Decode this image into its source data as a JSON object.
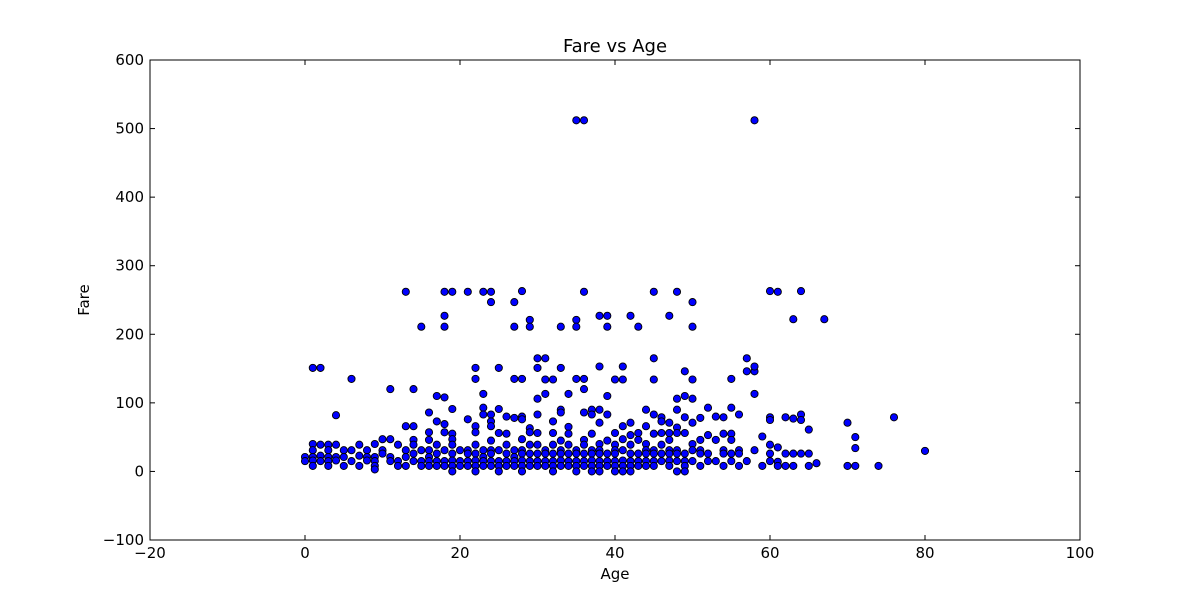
{
  "chart_data": {
    "type": "scatter",
    "title": "Fare vs Age",
    "xlabel": "Age",
    "ylabel": "Fare",
    "xlim": [
      -20,
      100
    ],
    "ylim": [
      -100,
      600
    ],
    "xticks": [
      -20,
      0,
      20,
      40,
      60,
      80,
      100
    ],
    "yticks": [
      -100,
      0,
      100,
      200,
      300,
      400,
      500,
      600
    ],
    "xtick_labels": [
      "−20",
      "0",
      "20",
      "40",
      "60",
      "80",
      "100"
    ],
    "ytick_labels": [
      "−100",
      "0",
      "100",
      "200",
      "300",
      "400",
      "500",
      "600"
    ],
    "grid": false,
    "marker_color": "#0000ff",
    "marker_edge_color": "#000000",
    "points": [
      [
        35,
        512
      ],
      [
        36,
        512
      ],
      [
        58,
        512
      ],
      [
        13,
        262
      ],
      [
        18,
        262
      ],
      [
        19,
        262
      ],
      [
        21,
        262
      ],
      [
        23,
        262
      ],
      [
        24,
        262
      ],
      [
        28,
        263
      ],
      [
        36,
        262
      ],
      [
        45,
        262
      ],
      [
        48,
        262
      ],
      [
        60,
        263
      ],
      [
        61,
        262
      ],
      [
        64,
        263
      ],
      [
        24,
        247
      ],
      [
        27,
        247
      ],
      [
        50,
        247
      ],
      [
        18,
        227
      ],
      [
        29,
        221
      ],
      [
        35,
        221
      ],
      [
        38,
        227
      ],
      [
        39,
        227
      ],
      [
        42,
        227
      ],
      [
        47,
        227
      ],
      [
        63,
        222
      ],
      [
        67,
        222
      ],
      [
        15,
        211
      ],
      [
        18,
        211
      ],
      [
        27,
        211
      ],
      [
        29,
        211
      ],
      [
        33,
        211
      ],
      [
        35,
        211
      ],
      [
        39,
        211
      ],
      [
        43,
        211
      ],
      [
        50,
        211
      ],
      [
        30,
        165
      ],
      [
        31,
        165
      ],
      [
        45,
        165
      ],
      [
        57,
        165
      ],
      [
        1,
        151
      ],
      [
        2,
        151
      ],
      [
        22,
        151
      ],
      [
        25,
        151
      ],
      [
        30,
        151
      ],
      [
        33,
        151
      ],
      [
        38,
        153
      ],
      [
        41,
        153
      ],
      [
        49,
        146
      ],
      [
        57,
        146
      ],
      [
        58,
        146
      ],
      [
        58,
        153
      ],
      [
        6,
        135
      ],
      [
        22,
        135
      ],
      [
        27,
        135
      ],
      [
        28,
        135
      ],
      [
        31,
        134
      ],
      [
        32,
        134
      ],
      [
        35,
        135
      ],
      [
        36,
        135
      ],
      [
        40,
        134
      ],
      [
        41,
        134
      ],
      [
        45,
        134
      ],
      [
        50,
        134
      ],
      [
        55,
        135
      ],
      [
        11,
        120
      ],
      [
        14,
        120
      ],
      [
        36,
        120
      ],
      [
        23,
        113
      ],
      [
        31,
        113
      ],
      [
        34,
        113
      ],
      [
        58,
        113
      ],
      [
        17,
        110
      ],
      [
        18,
        108
      ],
      [
        30,
        106
      ],
      [
        39,
        110
      ],
      [
        48,
        106
      ],
      [
        49,
        110
      ],
      [
        50,
        106
      ],
      [
        19,
        91
      ],
      [
        23,
        93
      ],
      [
        25,
        91
      ],
      [
        33,
        90
      ],
      [
        37,
        90
      ],
      [
        38,
        90
      ],
      [
        44,
        90
      ],
      [
        48,
        90
      ],
      [
        52,
        93
      ],
      [
        55,
        93
      ],
      [
        4,
        82
      ],
      [
        16,
        86
      ],
      [
        23,
        83
      ],
      [
        24,
        83
      ],
      [
        26,
        80
      ],
      [
        27,
        78
      ],
      [
        28,
        80
      ],
      [
        30,
        83
      ],
      [
        33,
        86
      ],
      [
        36,
        86
      ],
      [
        37,
        83
      ],
      [
        39,
        83
      ],
      [
        45,
        83
      ],
      [
        46,
        79
      ],
      [
        49,
        79
      ],
      [
        51,
        78
      ],
      [
        53,
        80
      ],
      [
        54,
        79
      ],
      [
        56,
        83
      ],
      [
        60,
        79
      ],
      [
        62,
        79
      ],
      [
        64,
        83
      ],
      [
        76,
        79
      ],
      [
        17,
        73
      ],
      [
        21,
        76
      ],
      [
        24,
        73
      ],
      [
        28,
        76
      ],
      [
        32,
        73
      ],
      [
        38,
        71
      ],
      [
        42,
        71
      ],
      [
        46,
        73
      ],
      [
        47,
        71
      ],
      [
        50,
        71
      ],
      [
        60,
        75
      ],
      [
        63,
        77
      ],
      [
        64,
        75
      ],
      [
        70,
        71
      ],
      [
        13,
        66
      ],
      [
        14,
        66
      ],
      [
        18,
        69
      ],
      [
        22,
        66
      ],
      [
        24,
        66
      ],
      [
        29,
        63
      ],
      [
        34,
        65
      ],
      [
        41,
        66
      ],
      [
        44,
        66
      ],
      [
        48,
        64
      ],
      [
        65,
        61
      ],
      [
        16,
        57
      ],
      [
        18,
        57
      ],
      [
        19,
        55
      ],
      [
        22,
        57
      ],
      [
        25,
        56
      ],
      [
        26,
        55
      ],
      [
        29,
        57
      ],
      [
        30,
        56
      ],
      [
        32,
        56
      ],
      [
        34,
        55
      ],
      [
        37,
        55
      ],
      [
        40,
        56
      ],
      [
        42,
        53
      ],
      [
        43,
        56
      ],
      [
        45,
        55
      ],
      [
        46,
        56
      ],
      [
        47,
        56
      ],
      [
        48,
        56
      ],
      [
        49,
        56
      ],
      [
        52,
        53
      ],
      [
        54,
        55
      ],
      [
        55,
        55
      ],
      [
        59,
        51
      ],
      [
        71,
        50
      ],
      [
        10,
        47
      ],
      [
        11,
        47
      ],
      [
        14,
        46
      ],
      [
        16,
        46
      ],
      [
        19,
        47
      ],
      [
        24,
        45
      ],
      [
        28,
        47
      ],
      [
        33,
        45
      ],
      [
        36,
        46
      ],
      [
        39,
        45
      ],
      [
        41,
        47
      ],
      [
        43,
        46
      ],
      [
        47,
        46
      ],
      [
        51,
        46
      ],
      [
        53,
        46
      ],
      [
        55,
        46
      ],
      [
        1,
        40
      ],
      [
        2,
        39
      ],
      [
        3,
        39
      ],
      [
        4,
        39
      ],
      [
        7,
        39
      ],
      [
        9,
        40
      ],
      [
        12,
        39
      ],
      [
        14,
        39
      ],
      [
        17,
        39
      ],
      [
        19,
        39
      ],
      [
        22,
        39
      ],
      [
        26,
        39
      ],
      [
        29,
        39
      ],
      [
        30,
        39
      ],
      [
        32,
        39
      ],
      [
        34,
        39
      ],
      [
        36,
        39
      ],
      [
        38,
        40
      ],
      [
        40,
        39
      ],
      [
        42,
        39
      ],
      [
        44,
        40
      ],
      [
        46,
        39
      ],
      [
        50,
        40
      ],
      [
        60,
        39
      ],
      [
        61,
        35
      ],
      [
        71,
        34
      ],
      [
        1,
        31
      ],
      [
        3,
        31
      ],
      [
        5,
        31
      ],
      [
        6,
        31
      ],
      [
        8,
        31
      ],
      [
        10,
        31
      ],
      [
        13,
        31
      ],
      [
        15,
        31
      ],
      [
        16,
        31
      ],
      [
        18,
        31
      ],
      [
        20,
        31
      ],
      [
        21,
        31
      ],
      [
        23,
        31
      ],
      [
        24,
        31
      ],
      [
        25,
        31
      ],
      [
        27,
        31
      ],
      [
        28,
        31
      ],
      [
        31,
        31
      ],
      [
        33,
        31
      ],
      [
        35,
        31
      ],
      [
        37,
        31
      ],
      [
        38,
        31
      ],
      [
        40,
        31
      ],
      [
        41,
        31
      ],
      [
        44,
        31
      ],
      [
        45,
        31
      ],
      [
        47,
        31
      ],
      [
        48,
        31
      ],
      [
        50,
        31
      ],
      [
        51,
        31
      ],
      [
        54,
        31
      ],
      [
        56,
        31
      ],
      [
        58,
        31
      ],
      [
        80,
        30
      ],
      [
        0,
        21
      ],
      [
        1,
        21
      ],
      [
        2,
        23
      ],
      [
        3,
        21
      ],
      [
        4,
        21
      ],
      [
        5,
        21
      ],
      [
        7,
        23
      ],
      [
        8,
        21
      ],
      [
        9,
        21
      ],
      [
        10,
        26
      ],
      [
        11,
        21
      ],
      [
        13,
        21
      ],
      [
        14,
        26
      ],
      [
        16,
        21
      ],
      [
        17,
        26
      ],
      [
        19,
        26
      ],
      [
        21,
        26
      ],
      [
        22,
        26
      ],
      [
        23,
        21
      ],
      [
        24,
        26
      ],
      [
        26,
        26
      ],
      [
        27,
        21
      ],
      [
        28,
        26
      ],
      [
        29,
        26
      ],
      [
        30,
        26
      ],
      [
        31,
        26
      ],
      [
        32,
        26
      ],
      [
        33,
        26
      ],
      [
        34,
        26
      ],
      [
        35,
        26
      ],
      [
        36,
        26
      ],
      [
        37,
        26
      ],
      [
        38,
        26
      ],
      [
        39,
        26
      ],
      [
        40,
        26
      ],
      [
        42,
        26
      ],
      [
        43,
        26
      ],
      [
        44,
        26
      ],
      [
        45,
        26
      ],
      [
        46,
        26
      ],
      [
        47,
        26
      ],
      [
        48,
        26
      ],
      [
        49,
        26
      ],
      [
        51,
        26
      ],
      [
        52,
        26
      ],
      [
        54,
        26
      ],
      [
        55,
        26
      ],
      [
        56,
        26
      ],
      [
        60,
        26
      ],
      [
        62,
        26
      ],
      [
        63,
        26
      ],
      [
        64,
        26
      ],
      [
        65,
        26
      ],
      [
        0,
        15
      ],
      [
        1,
        16
      ],
      [
        2,
        15
      ],
      [
        3,
        15
      ],
      [
        4,
        16
      ],
      [
        6,
        15
      ],
      [
        8,
        16
      ],
      [
        9,
        15
      ],
      [
        11,
        15
      ],
      [
        12,
        15
      ],
      [
        14,
        15
      ],
      [
        15,
        15
      ],
      [
        16,
        15
      ],
      [
        17,
        15
      ],
      [
        18,
        15
      ],
      [
        19,
        16
      ],
      [
        20,
        15
      ],
      [
        21,
        15
      ],
      [
        22,
        16
      ],
      [
        23,
        15
      ],
      [
        24,
        15
      ],
      [
        25,
        15
      ],
      [
        26,
        15
      ],
      [
        27,
        15
      ],
      [
        28,
        16
      ],
      [
        29,
        15
      ],
      [
        30,
        15
      ],
      [
        31,
        15
      ],
      [
        32,
        15
      ],
      [
        33,
        16
      ],
      [
        34,
        15
      ],
      [
        35,
        15
      ],
      [
        36,
        15
      ],
      [
        37,
        16
      ],
      [
        38,
        15
      ],
      [
        39,
        15
      ],
      [
        40,
        15
      ],
      [
        41,
        16
      ],
      [
        42,
        15
      ],
      [
        43,
        15
      ],
      [
        44,
        15
      ],
      [
        45,
        15
      ],
      [
        46,
        15
      ],
      [
        47,
        16
      ],
      [
        48,
        15
      ],
      [
        49,
        15
      ],
      [
        50,
        15
      ],
      [
        52,
        15
      ],
      [
        53,
        15
      ],
      [
        55,
        15
      ],
      [
        57,
        15
      ],
      [
        60,
        15
      ],
      [
        61,
        14
      ],
      [
        66,
        12
      ],
      [
        1,
        8
      ],
      [
        3,
        8
      ],
      [
        5,
        8
      ],
      [
        7,
        8
      ],
      [
        9,
        8
      ],
      [
        12,
        8
      ],
      [
        13,
        8
      ],
      [
        15,
        8
      ],
      [
        16,
        8
      ],
      [
        17,
        8
      ],
      [
        18,
        8
      ],
      [
        19,
        8
      ],
      [
        20,
        8
      ],
      [
        21,
        8
      ],
      [
        22,
        8
      ],
      [
        23,
        8
      ],
      [
        24,
        8
      ],
      [
        25,
        8
      ],
      [
        26,
        8
      ],
      [
        27,
        8
      ],
      [
        28,
        8
      ],
      [
        29,
        8
      ],
      [
        30,
        8
      ],
      [
        31,
        8
      ],
      [
        32,
        8
      ],
      [
        33,
        8
      ],
      [
        34,
        8
      ],
      [
        35,
        8
      ],
      [
        36,
        8
      ],
      [
        37,
        8
      ],
      [
        38,
        8
      ],
      [
        39,
        8
      ],
      [
        40,
        8
      ],
      [
        41,
        8
      ],
      [
        42,
        8
      ],
      [
        43,
        8
      ],
      [
        44,
        8
      ],
      [
        45,
        8
      ],
      [
        47,
        8
      ],
      [
        49,
        8
      ],
      [
        51,
        8
      ],
      [
        54,
        8
      ],
      [
        56,
        8
      ],
      [
        59,
        8
      ],
      [
        61,
        8
      ],
      [
        62,
        8
      ],
      [
        63,
        8
      ],
      [
        65,
        8
      ],
      [
        70,
        8
      ],
      [
        71,
        8
      ],
      [
        74,
        8
      ],
      [
        9,
        3
      ],
      [
        19,
        0
      ],
      [
        22,
        0
      ],
      [
        25,
        0
      ],
      [
        28,
        0
      ],
      [
        32,
        0
      ],
      [
        35,
        0
      ],
      [
        37,
        0
      ],
      [
        38,
        0
      ],
      [
        40,
        0
      ],
      [
        41,
        0
      ],
      [
        42,
        0
      ],
      [
        48,
        0
      ],
      [
        49,
        0
      ]
    ]
  }
}
